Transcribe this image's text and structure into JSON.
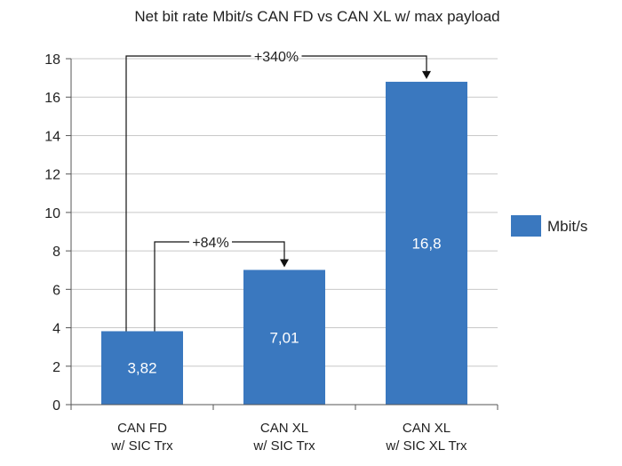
{
  "chart_data": {
    "type": "bar",
    "title": "Net bit rate Mbit/s CAN FD vs CAN XL w/ max payload",
    "categories": [
      [
        "CAN FD",
        "w/ SIC Trx"
      ],
      [
        "CAN XL",
        "w/ SIC Trx"
      ],
      [
        "CAN XL",
        "w/ SIC XL Trx"
      ]
    ],
    "series": [
      {
        "name": "Mbit/s",
        "values": [
          3.82,
          7.01,
          16.8
        ],
        "value_labels": [
          "3,82",
          "7,01",
          "16,8"
        ],
        "color": "#3a78bf"
      }
    ],
    "ylim": [
      0,
      18
    ],
    "yticks": [
      0,
      2,
      4,
      6,
      8,
      10,
      12,
      14,
      16,
      18
    ],
    "grid": true,
    "legend_position": "right",
    "annotations": [
      {
        "text": "+84%",
        "from": 0,
        "to": 1
      },
      {
        "text": "+340%",
        "from": 0,
        "to": 2
      }
    ],
    "colors": {
      "bar": "#3a78bf",
      "grid": "#c8c8c8",
      "axis": "#555555",
      "text": "#222222"
    }
  }
}
